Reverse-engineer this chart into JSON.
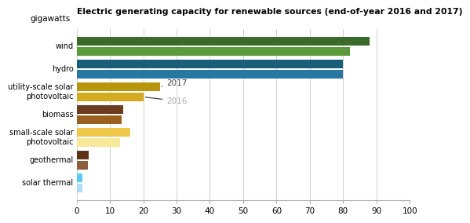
{
  "title": "Electric generating capacity for renewable sources (end-of-year 2016 and 2017)",
  "ylabel_unit": "gigawatts",
  "categories": [
    "wind",
    "hydro",
    "utility-scale solar\nphotovoltaic",
    "biomass",
    "small-scale solar\nphotovoltaic",
    "geothermal",
    "solar thermal"
  ],
  "values_2017": [
    88,
    80,
    25,
    14,
    16,
    3.5,
    1.8
  ],
  "values_2016": [
    82,
    80,
    20,
    13.5,
    13,
    3.4,
    1.8
  ],
  "colors_2017": [
    "#3a6b2a",
    "#1a5f7a",
    "#b8960c",
    "#6b3a1f",
    "#f0c84a",
    "#5c3317",
    "#5bc8f5"
  ],
  "colors_2016": [
    "#5a9a3a",
    "#2678a0",
    "#d4aa20",
    "#9b6020",
    "#f7e89a",
    "#8b5e3c",
    "#a8def7"
  ],
  "xlim": [
    0,
    100
  ],
  "xticks": [
    0,
    10,
    20,
    30,
    40,
    50,
    60,
    70,
    80,
    90,
    100
  ],
  "background_color": "#ffffff",
  "grid_color": "#d0d0d0"
}
